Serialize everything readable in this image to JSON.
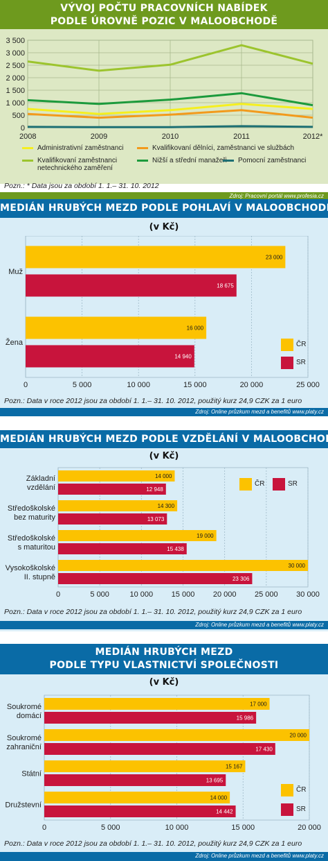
{
  "colors": {
    "cr": "#fcc200",
    "sr": "#c8143c",
    "admin": "#f5ef1f",
    "qualified": "#f29a1c",
    "technical": "#9cc42e",
    "managers": "#1c9a3c",
    "auxiliary": "#1d6f73"
  },
  "chart1": {
    "title_line1": "VÝVOJ POČTU PRACOVNÍCH NABÍDEK",
    "title_line2": "PODLE ÚROVNĚ POZIC V MALOOBCHODĚ",
    "note": "Pozn.: * Data jsou za období 1. 1.– 31. 10. 2012",
    "source": "Zdroj: Pracovní portál www.profesia.cz"
  },
  "chart2": {
    "title": "MEDIÁN HRUBÝCH MEZD PODLE POHLAVÍ V MALOOBCHODĚ",
    "unit": "(v Kč)",
    "note": "Pozn.: Data v roce 2012 jsou za období 1. 1.– 31. 10. 2012, použitý kurz 24,9 CZK za 1 euro",
    "source": "Zdroj: Online průzkum mezd a benefitů www.platy.cz"
  },
  "chart3": {
    "title": "MEDIÁN HRUBÝCH MEZD PODLE VZDĚLÁNÍ V MALOOBCHODĚ",
    "unit": "(v Kč)",
    "note": "Pozn.: Data v roce 2012 jsou za období 1. 1.– 31. 10. 2012, použitý kurz 24,9 CZK za 1 euro",
    "source": "Zdroj: Online průzkum mezd a benefitů www.platy.cz"
  },
  "chart4": {
    "title_line1": "MEDIÁN HRUBÝCH MEZD",
    "title_line2": "PODLE TYPU VLASTNICTVÍ SPOLEČNOSTI",
    "unit": "(v Kč)",
    "note": "Pozn.: Data v roce 2012 jsou za období 1. 1.– 31. 10. 2012, použitý kurz 24,9 CZK za 1 euro",
    "source": "Zdroj: Online průzkum mezd a benefitů www.platy.cz"
  },
  "chart_data": [
    {
      "type": "line",
      "x": [
        "2008",
        "2009",
        "2010",
        "2011",
        "2012*"
      ],
      "ylim": [
        0,
        3500
      ],
      "yticks": [
        "0",
        "500",
        "1 000",
        "1 500",
        "2 000",
        "2 500",
        "3 000",
        "3 500"
      ],
      "grid": true,
      "legend": "bottom",
      "series": [
        {
          "name": "Administrativní zaměstnanci",
          "values": [
            750,
            550,
            700,
            950,
            750
          ]
        },
        {
          "name": "Kvalifikovaní dělníci, zaměstnanci ve službách",
          "values": [
            550,
            400,
            520,
            700,
            400
          ]
        },
        {
          "name": "Kvalifikovaní zaměstnanci netechnického zaměření",
          "values": [
            2650,
            2280,
            2520,
            3300,
            2560
          ]
        },
        {
          "name": "Nižší a střední manažeři",
          "values": [
            1100,
            950,
            1120,
            1380,
            900
          ]
        },
        {
          "name": "Pomocní zaměstnanci",
          "values": [
            30,
            20,
            20,
            60,
            30
          ]
        }
      ]
    },
    {
      "type": "bar",
      "orientation": "horizontal",
      "categories": [
        "Muž",
        "Žena"
      ],
      "xlim": [
        0,
        25000
      ],
      "xticks": [
        "0",
        "5 000",
        "10 000",
        "15 000",
        "20 000",
        "25 000"
      ],
      "legend": "right",
      "series": [
        {
          "name": "ČR",
          "values": [
            23000,
            16000
          ],
          "labels": [
            "23 000",
            "16 000"
          ]
        },
        {
          "name": "SR",
          "values": [
            18675,
            14940
          ],
          "labels": [
            "18 675",
            "14 940"
          ]
        }
      ]
    },
    {
      "type": "bar",
      "orientation": "horizontal",
      "categories": [
        "Základní vzdělání",
        "Středoškolské bez maturity",
        "Středoškolské s maturitou",
        "Vysokoškolské II. stupně"
      ],
      "xlim": [
        0,
        30000
      ],
      "xticks": [
        "0",
        "5 000",
        "10 000",
        "15 000",
        "20 000",
        "25 000",
        "30 000"
      ],
      "legend": "top-right",
      "series": [
        {
          "name": "ČR",
          "values": [
            14000,
            14300,
            19000,
            30000
          ],
          "labels": [
            "14 000",
            "14 300",
            "19 000",
            "30 000"
          ]
        },
        {
          "name": "SR",
          "values": [
            12948,
            13073,
            15438,
            23306
          ],
          "labels": [
            "12 948",
            "13 073",
            "15 438",
            "23 306"
          ]
        }
      ]
    },
    {
      "type": "bar",
      "orientation": "horizontal",
      "categories": [
        "Soukromé domácí",
        "Soukromé zahraniční",
        "Státní",
        "Družstevní"
      ],
      "xlim": [
        0,
        20000
      ],
      "xticks": [
        "0",
        "5 000",
        "10 000",
        "15 000",
        "20 000"
      ],
      "legend": "bottom-right",
      "series": [
        {
          "name": "ČR",
          "values": [
            17000,
            20000,
            15167,
            14000
          ],
          "labels": [
            "17 000",
            "20 000",
            "15 167",
            "14 000"
          ]
        },
        {
          "name": "SR",
          "values": [
            15986,
            17430,
            13695,
            14442
          ],
          "labels": [
            "15 986",
            "17 430",
            "13 695",
            "14 442"
          ]
        }
      ]
    }
  ]
}
